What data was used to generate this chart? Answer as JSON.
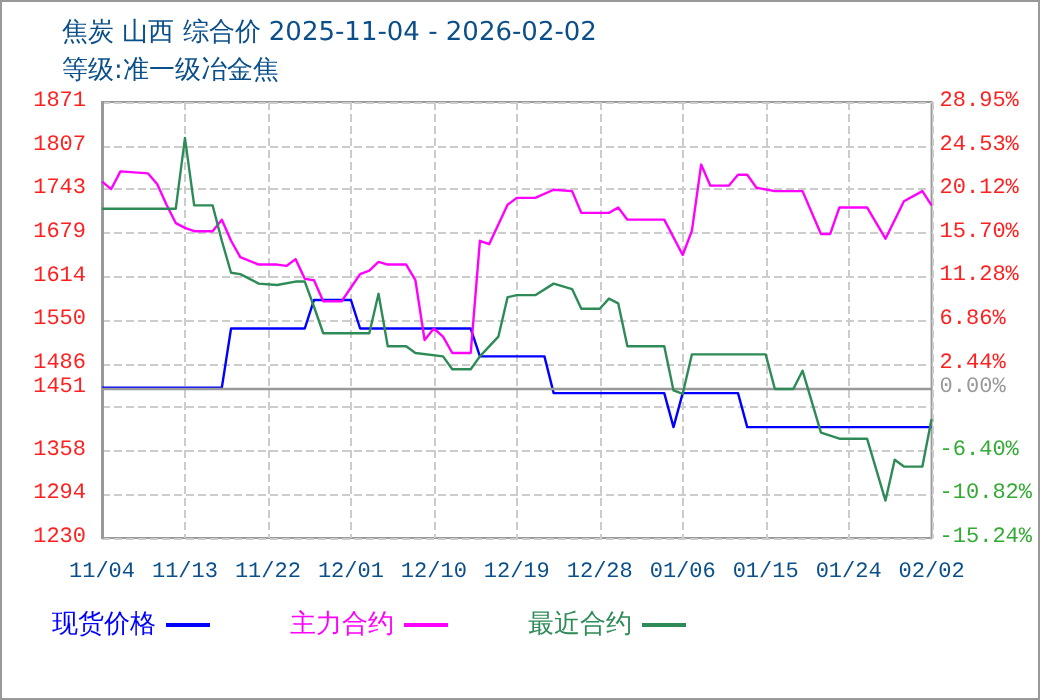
{
  "chart_data": {
    "type": "line",
    "title": "焦炭 山西 综合价 2025-11-04 - 2026-02-02",
    "subtitle": "等级:准一级冶金焦",
    "xlim": [
      "2025-11-04",
      "2026-02-02"
    ],
    "xticks": [
      {
        "value": "2025-11-04",
        "label": "11/04"
      },
      {
        "value": "2025-11-13",
        "label": "11/13"
      },
      {
        "value": "2025-11-22",
        "label": "11/22"
      },
      {
        "value": "2025-12-01",
        "label": "12/01"
      },
      {
        "value": "2025-12-10",
        "label": "12/10"
      },
      {
        "value": "2025-12-19",
        "label": "12/19"
      },
      {
        "value": "2025-12-28",
        "label": "12/28"
      },
      {
        "value": "2026-01-06",
        "label": "01/06"
      },
      {
        "value": "2026-01-15",
        "label": "01/15"
      },
      {
        "value": "2026-01-24",
        "label": "01/24"
      },
      {
        "value": "2026-02-02",
        "label": "02/02"
      }
    ],
    "ylim": [
      1230,
      1871
    ],
    "yticks": [
      1230,
      {
        "value": 1294.1,
        "label": "1294"
      },
      {
        "value": 1358.2,
        "label": "1358"
      },
      {
        "value": 1422.3,
        "label": null
      },
      1451,
      {
        "value": 1486.4,
        "label": "1486"
      },
      {
        "value": 1550.5,
        "label": "1550"
      },
      {
        "value": 1614.4,
        "label": "1614"
      },
      {
        "value": 1678.7,
        "label": "1679"
      },
      {
        "value": 1742.8,
        "label": "1743"
      },
      {
        "value": 1806.9,
        "label": "1807"
      },
      1871
    ],
    "y2lim": [
      -15.24,
      28.95
    ],
    "y2ticks": [
      {
        "value": -15.24,
        "label": "-15.24%"
      },
      {
        "value": -10.82,
        "label": "-10.82%"
      },
      {
        "value": -6.4,
        "label": "-6.40%"
      },
      {
        "value": 0,
        "label": "0.00%"
      },
      {
        "value": 2.44,
        "label": "2.44%"
      },
      {
        "value": 6.86,
        "label": "6.86%"
      },
      {
        "value": 11.28,
        "label": "11.28%"
      },
      {
        "value": 15.7,
        "label": "15.70%"
      },
      {
        "value": 20.12,
        "label": "20.12%"
      },
      {
        "value": 24.53,
        "label": "24.53%"
      },
      {
        "value": 28.95,
        "label": "28.95%"
      }
    ],
    "grid": true,
    "legend": "bottom left",
    "marker": "none",
    "line_style": "solid",
    "ref_lines": [
      {
        "axis": "y",
        "value": 1451,
        "color": "#999999"
      }
    ],
    "series": [
      {
        "name": "现货价格",
        "color": "#0000ff",
        "x": [
          "2025-11-04",
          "2025-11-17",
          "2025-11-18",
          "2025-11-26",
          "2025-11-27",
          "2025-12-01",
          "2025-12-02",
          "2025-12-14",
          "2025-12-15",
          "2025-12-22",
          "2025-12-23",
          "2026-01-04",
          "2026-01-05",
          "2026-01-06",
          "2026-01-12",
          "2026-01-13",
          "2026-02-02"
        ],
        "values": [
          1451,
          1451,
          1538,
          1538,
          1580,
          1580,
          1538,
          1538,
          1497,
          1497,
          1443,
          1443,
          1393,
          1443,
          1443,
          1393,
          1393
        ]
      },
      {
        "name": "主力合约",
        "color": "#ff00ff",
        "x": [
          "2025-11-04",
          "2025-11-05",
          "2025-11-06",
          "2025-11-09",
          "2025-11-10",
          "2025-11-11",
          "2025-11-12",
          "2025-11-13",
          "2025-11-14",
          "2025-11-16",
          "2025-11-17",
          "2025-11-18",
          "2025-11-19",
          "2025-11-21",
          "2025-11-23",
          "2025-11-24",
          "2025-11-25",
          "2025-11-26",
          "2025-11-27",
          "2025-11-28",
          "2025-11-30",
          "2025-12-02",
          "2025-12-03",
          "2025-12-04",
          "2025-12-05",
          "2025-12-07",
          "2025-12-08",
          "2025-12-09",
          "2025-12-10",
          "2025-12-11",
          "2025-12-12",
          "2025-12-14",
          "2025-12-15",
          "2025-12-16",
          "2025-12-18",
          "2025-12-19",
          "2025-12-21",
          "2025-12-23",
          "2025-12-25",
          "2025-12-26",
          "2025-12-29",
          "2025-12-30",
          "2025-12-31",
          "2026-01-04",
          "2026-01-06",
          "2026-01-07",
          "2026-01-08",
          "2026-01-09",
          "2026-01-11",
          "2026-01-12",
          "2026-01-13",
          "2026-01-14",
          "2026-01-16",
          "2026-01-19",
          "2026-01-21",
          "2026-01-22",
          "2026-01-23",
          "2026-01-26",
          "2026-01-28",
          "2026-01-30",
          "2026-02-01",
          "2026-02-02"
        ],
        "values": [
          1754,
          1743,
          1769,
          1766,
          1750,
          1720,
          1693,
          1686,
          1681,
          1681,
          1698,
          1667,
          1643,
          1632,
          1632,
          1630,
          1640,
          1611,
          1609,
          1578,
          1578,
          1618,
          1623,
          1636,
          1632,
          1632,
          1609,
          1521,
          1538,
          1526,
          1502,
          1502,
          1667,
          1662,
          1720,
          1730,
          1730,
          1742,
          1740,
          1708,
          1708,
          1716,
          1698,
          1698,
          1646,
          1682,
          1779,
          1748,
          1748,
          1764,
          1764,
          1745,
          1740,
          1740,
          1677,
          1677,
          1716,
          1716,
          1670,
          1725,
          1740,
          1719
        ]
      },
      {
        "name": "最近合约",
        "color": "#2e8b57",
        "x": [
          "2025-11-04",
          "2025-11-12",
          "2025-11-13",
          "2025-11-14",
          "2025-11-16",
          "2025-11-17",
          "2025-11-18",
          "2025-11-19",
          "2025-11-21",
          "2025-11-23",
          "2025-11-25",
          "2025-11-26",
          "2025-11-27",
          "2025-11-28",
          "2025-12-03",
          "2025-12-04",
          "2025-12-05",
          "2025-12-07",
          "2025-12-08",
          "2025-12-11",
          "2025-12-12",
          "2025-12-14",
          "2025-12-15",
          "2025-12-17",
          "2025-12-18",
          "2025-12-19",
          "2025-12-21",
          "2025-12-23",
          "2025-12-25",
          "2025-12-26",
          "2025-12-28",
          "2025-12-29",
          "2025-12-30",
          "2025-12-31",
          "2026-01-04",
          "2026-01-05",
          "2026-01-06",
          "2026-01-07",
          "2026-01-15",
          "2026-01-16",
          "2026-01-18",
          "2026-01-19",
          "2026-01-21",
          "2026-01-23",
          "2026-01-26",
          "2026-01-28",
          "2026-01-29",
          "2026-01-30",
          "2026-02-01",
          "2026-02-02"
        ],
        "values": [
          1714,
          1714,
          1818,
          1719,
          1719,
          1667,
          1620,
          1618,
          1604,
          1602,
          1607,
          1607,
          1570,
          1531,
          1531,
          1589,
          1512,
          1512,
          1502,
          1497,
          1478,
          1478,
          1497,
          1526,
          1584,
          1587,
          1587,
          1604,
          1596,
          1567,
          1567,
          1582,
          1575,
          1512,
          1512,
          1447,
          1442,
          1500,
          1500,
          1449,
          1449,
          1476,
          1385,
          1376,
          1376,
          1285,
          1345,
          1335,
          1335,
          1405
        ]
      }
    ]
  }
}
